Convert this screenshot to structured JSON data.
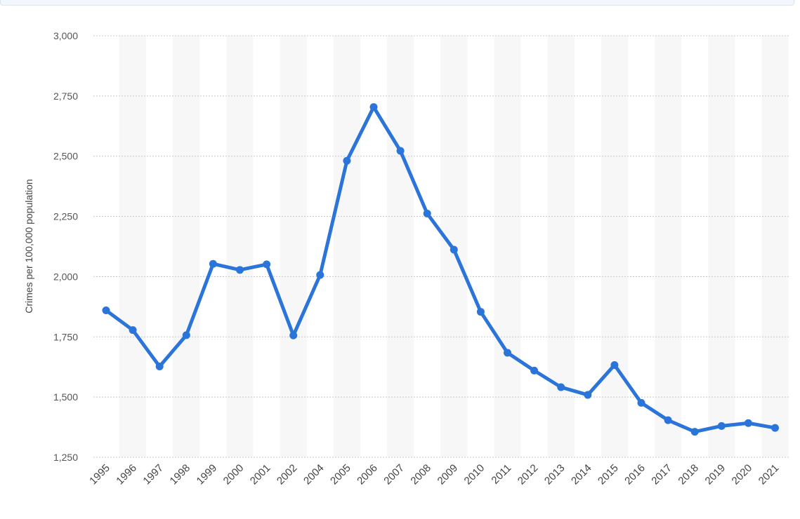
{
  "chart_data": {
    "type": "line",
    "ylabel": "Crimes per 100,000 population",
    "xlabel": "",
    "categories": [
      "1995",
      "1996",
      "1997",
      "1998",
      "1999",
      "2000",
      "2001",
      "2002",
      "2004",
      "2005",
      "2006",
      "2007",
      "2008",
      "2009",
      "2010",
      "2011",
      "2012",
      "2013",
      "2014",
      "2015",
      "2016",
      "2017",
      "2018",
      "2019",
      "2020",
      "2021"
    ],
    "series": [
      {
        "values": [
          1860,
          1778,
          1627,
          1757,
          2053,
          2028,
          2051,
          1756,
          2007,
          2481,
          2704,
          2522,
          2262,
          2112,
          1854,
          1684,
          1610,
          1541,
          1509,
          1633,
          1476,
          1404,
          1356,
          1380,
          1392,
          1372
        ]
      }
    ],
    "ylim": [
      1250,
      3000
    ],
    "yticks": [
      1250,
      1500,
      1750,
      2000,
      2250,
      2500,
      2750,
      3000
    ],
    "ytick_labels": [
      "1,250",
      "1,500",
      "1,750",
      "2,000",
      "2,250",
      "2,500",
      "2,750",
      "3,000"
    ],
    "grid": true,
    "line_color": "#2b74d9",
    "band_color": "#f7f7f7",
    "grid_color": "#c8c8c8"
  }
}
